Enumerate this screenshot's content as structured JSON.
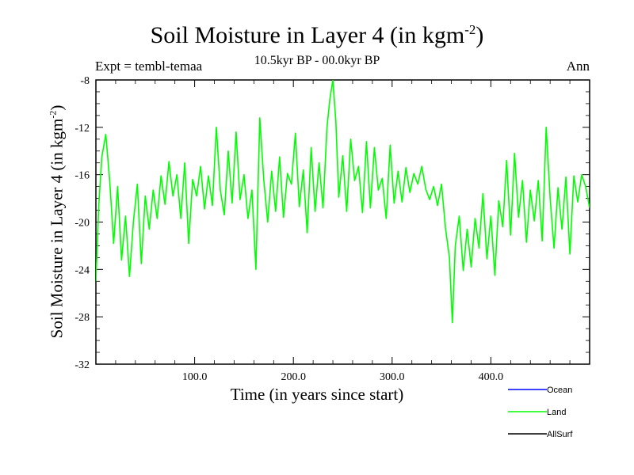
{
  "chart_data": {
    "type": "line",
    "title": "Soil Moisture in Layer 4 (in kgm",
    "title_sup": "-2",
    "title_close": ")",
    "subtitle": "10.5kyr BP - 00.0kyr BP",
    "left_label": "Expt = tembl-temaa",
    "right_label": "Ann",
    "xlabel": "Time (in years since start)",
    "ylabel": "Soil Moisture in Layer 4 (in kgm",
    "ylabel_sup": "-2",
    "ylabel_close": ")",
    "xlim": [
      0,
      500
    ],
    "ylim": [
      -32,
      -8
    ],
    "x_ticks": [
      100,
      200,
      300,
      400
    ],
    "x_tick_labels": [
      "100.0",
      "200.0",
      "300.0",
      "400.0"
    ],
    "y_ticks": [
      -32,
      -28,
      -24,
      -20,
      -16,
      -12,
      -8
    ],
    "y_tick_labels": [
      "-32",
      "-28",
      "-24",
      "-20",
      "-16",
      "-12",
      "-8"
    ],
    "legend": [
      {
        "name": "Ocean",
        "color": "#0000ff"
      },
      {
        "name": "Land",
        "color": "#00ff00"
      },
      {
        "name": "AllSurf",
        "color": "#000000"
      }
    ],
    "series": [
      {
        "name": "Land",
        "color": "#00ff00",
        "x": [
          0,
          3,
          6,
          10,
          14,
          18,
          22,
          26,
          30,
          34,
          38,
          42,
          46,
          50,
          54,
          58,
          62,
          66,
          70,
          74,
          78,
          82,
          86,
          90,
          94,
          98,
          102,
          106,
          110,
          114,
          118,
          122,
          126,
          130,
          134,
          138,
          142,
          146,
          150,
          154,
          158,
          162,
          166,
          170,
          174,
          178,
          182,
          186,
          190,
          194,
          198,
          202,
          206,
          210,
          214,
          218,
          222,
          226,
          230,
          234,
          237,
          240,
          243,
          246,
          250,
          254,
          258,
          262,
          266,
          270,
          274,
          278,
          282,
          286,
          290,
          294,
          298,
          302,
          306,
          310,
          314,
          318,
          322,
          326,
          330,
          334,
          338,
          342,
          346,
          350,
          354,
          358,
          361,
          364,
          368,
          372,
          376,
          380,
          384,
          388,
          392,
          396,
          400,
          404,
          408,
          412,
          416,
          420,
          424,
          428,
          432,
          436,
          440,
          444,
          448,
          452,
          456,
          460,
          464,
          468,
          472,
          476,
          480,
          484,
          488,
          492,
          496,
          500
        ],
        "values": [
          -25.0,
          -18.5,
          -14.5,
          -12.6,
          -16.5,
          -21.8,
          -17.0,
          -23.2,
          -19.5,
          -24.6,
          -20.0,
          -16.8,
          -23.5,
          -17.8,
          -20.6,
          -17.3,
          -19.7,
          -16.1,
          -18.5,
          -14.9,
          -17.8,
          -16.0,
          -19.7,
          -15.0,
          -21.8,
          -16.4,
          -17.8,
          -15.3,
          -18.9,
          -16.1,
          -18.6,
          -12.0,
          -17.3,
          -19.4,
          -14.0,
          -18.4,
          -12.4,
          -18.1,
          -16.0,
          -19.7,
          -17.3,
          -24.0,
          -11.2,
          -16.4,
          -20.0,
          -15.7,
          -19.1,
          -14.5,
          -19.6,
          -15.9,
          -16.8,
          -12.5,
          -18.7,
          -15.6,
          -20.9,
          -13.7,
          -19.1,
          -15.0,
          -18.8,
          -12.0,
          -9.6,
          -8.0,
          -11.5,
          -17.9,
          -14.4,
          -19.1,
          -13.0,
          -16.5,
          -15.3,
          -19.2,
          -13.2,
          -18.8,
          -13.7,
          -17.3,
          -16.3,
          -19.7,
          -13.5,
          -18.4,
          -15.7,
          -18.3,
          -15.4,
          -17.5,
          -15.9,
          -16.8,
          -15.3,
          -17.2,
          -18.1,
          -17.0,
          -18.6,
          -16.8,
          -20.5,
          -23.0,
          -28.5,
          -22.0,
          -19.5,
          -24.1,
          -20.6,
          -23.8,
          -19.7,
          -22.2,
          -17.6,
          -23.1,
          -19.5,
          -24.5,
          -18.2,
          -20.4,
          -14.8,
          -21.1,
          -14.2,
          -19.6,
          -16.5,
          -21.7,
          -17.3,
          -19.9,
          -16.5,
          -21.6,
          -12.0,
          -18.0,
          -22.2,
          -17.1,
          -20.6,
          -16.2,
          -22.7,
          -16.1,
          -18.3,
          -16.0,
          -17.0,
          -18.8
        ]
      }
    ]
  }
}
